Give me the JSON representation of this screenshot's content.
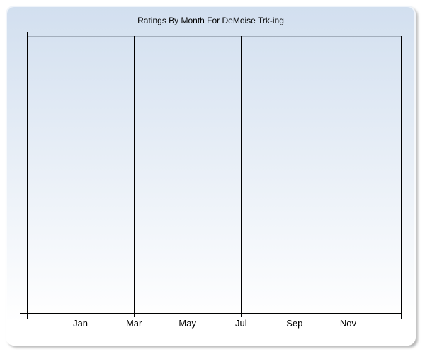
{
  "window": {
    "title": "Ratings By Month For DeMoise Trk-ing"
  },
  "chart_data": {
    "type": "line",
    "title": "Ratings By Month For DeMoise Trk-ing",
    "xlabel": "",
    "ylabel": "",
    "categories": [
      "Jan",
      "Mar",
      "May",
      "Jul",
      "Sep",
      "Nov"
    ],
    "x_tick_labels": [
      "Jan",
      "Mar",
      "May",
      "Jul",
      "Sep",
      "Nov"
    ],
    "y_tick_labels": [],
    "series": [],
    "grid": "vertical-gridlines-only",
    "legend": "none",
    "x_intervals": 7,
    "plot_empty": true
  },
  "colors": {
    "page_background": "#ffffff",
    "panel_gradient_top": "#d2dfef",
    "panel_gradient_bottom": "#ffffff",
    "plot_top_border": "#a3aebc",
    "grid_line": "#000000",
    "axis_line": "#000000",
    "title_text": "#000000",
    "tick_label_text": "#000000",
    "panel_shadow": "#7d7d7d"
  }
}
